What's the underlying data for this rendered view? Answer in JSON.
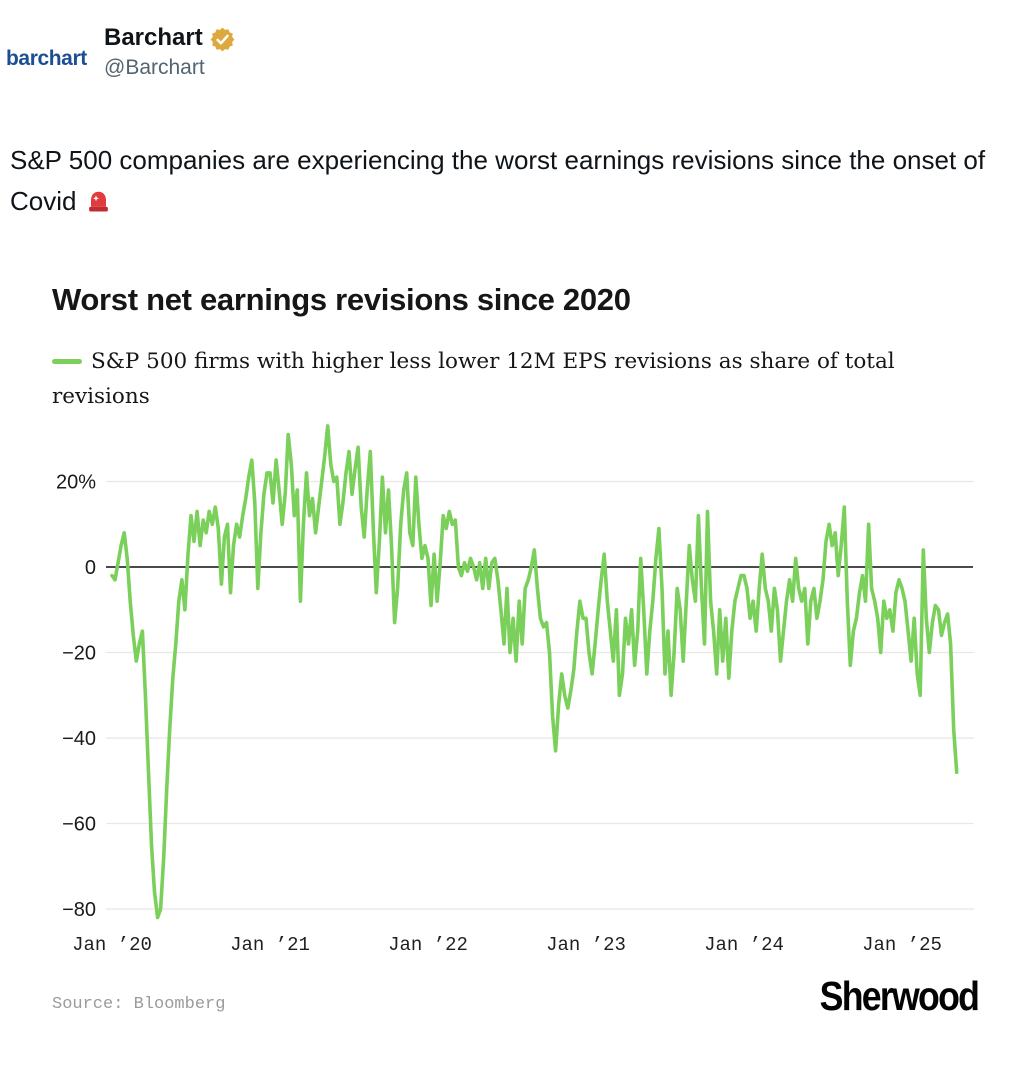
{
  "header": {
    "avatar_logo_text": "barchart",
    "display_name": "Barchart",
    "handle": "@Barchart",
    "verified_badge": "gold-verified",
    "logo_blue": "#1d4e94",
    "badge_gold": "#dda93f"
  },
  "tweet": {
    "text": "S&P 500 companies are experiencing the worst earnings revisions since the onset of Covid",
    "emoji": "🚨"
  },
  "chart": {
    "title": "Worst net earnings revisions since 2020",
    "legend_label": "S&P 500 firms with higher less lower 12M EPS revisions as share of total revisions",
    "source": "Source: Bloomberg",
    "branding": "Sherwood",
    "line_color": "#7ad05a",
    "grid_color": "#e8e8e8",
    "zero_line_color": "#4b4b4b"
  },
  "chart_data": {
    "type": "line",
    "title": "Worst net earnings revisions since 2020",
    "ylabel": "",
    "unit": "%",
    "ylim": [
      -85,
      35
    ],
    "yticks": [
      20,
      0,
      -20,
      -40,
      -60,
      -80
    ],
    "ytick_labels": [
      "20%",
      "0",
      "−20",
      "−40",
      "−60",
      "−80"
    ],
    "xtick_labels": [
      "Jan ’20",
      "Jan ’21",
      "Jan ’22",
      "Jan ’23",
      "Jan ’24",
      "Jan ’25"
    ],
    "grid": "horizontal",
    "legend_position": "top-left",
    "zero_line": true,
    "x_start_year": 2020,
    "points_per_year": 52,
    "series": [
      {
        "name": "S&P 500 firms with higher less lower 12M EPS revisions as share of total revisions",
        "frequency": "weekly",
        "values": [
          -2,
          -3,
          1,
          5,
          8,
          2,
          -8,
          -16,
          -22,
          -18,
          -15,
          -30,
          -48,
          -65,
          -76,
          -82,
          -80,
          -68,
          -52,
          -38,
          -26,
          -18,
          -8,
          -3,
          -10,
          3,
          12,
          6,
          13,
          5,
          11,
          8,
          13,
          10,
          14,
          9,
          -4,
          7,
          10,
          -6,
          5,
          10,
          7,
          12,
          16,
          21,
          25,
          15,
          -5,
          8,
          17,
          22,
          22,
          15,
          25,
          18,
          10,
          17,
          31,
          24,
          12,
          18,
          -8,
          10,
          22,
          12,
          16,
          8,
          14,
          20,
          26,
          33,
          24,
          20,
          21,
          10,
          15,
          22,
          27,
          17,
          23,
          28,
          14,
          7,
          18,
          27,
          9,
          -6,
          6,
          21,
          8,
          18,
          5,
          -13,
          -5,
          10,
          18,
          22,
          8,
          5,
          21,
          10,
          2,
          5,
          2,
          -9,
          3,
          -8,
          1,
          12,
          9,
          13,
          10,
          11,
          0,
          -2,
          1,
          -1,
          2,
          0,
          -3,
          1,
          -5,
          2,
          -5,
          1,
          2,
          -3,
          -10,
          -18,
          -5,
          -20,
          -12,
          -22,
          -8,
          -18,
          -5,
          -3,
          0,
          4,
          -5,
          -12,
          -14,
          -13,
          -20,
          -35,
          -43,
          -32,
          -25,
          -30,
          -33,
          -29,
          -24,
          -15,
          -8,
          -12,
          -12,
          -20,
          -25,
          -18,
          -10,
          -3,
          3,
          -8,
          -15,
          -22,
          -10,
          -30,
          -25,
          -12,
          -18,
          -10,
          -23,
          -15,
          2,
          -10,
          -25,
          -15,
          -8,
          2,
          9,
          -5,
          -25,
          -15,
          -30,
          -20,
          -5,
          -10,
          -22,
          -8,
          5,
          -3,
          -8,
          12,
          -5,
          -18,
          13,
          -8,
          -15,
          -25,
          -10,
          -22,
          -12,
          -26,
          -15,
          -8,
          -5,
          -2,
          -2,
          -5,
          -12,
          -8,
          -15,
          -5,
          3,
          -5,
          -8,
          -15,
          -5,
          -10,
          -22,
          -15,
          -8,
          -3,
          -8,
          2,
          -5,
          -8,
          -5,
          -18,
          -8,
          -5,
          -12,
          -8,
          -3,
          6,
          10,
          5,
          8,
          -2,
          5,
          14,
          -8,
          -23,
          -15,
          -12,
          -6,
          -2,
          -8,
          10,
          -5,
          -8,
          -12,
          -20,
          -8,
          -12,
          -10,
          -15,
          -6,
          -3,
          -5,
          -8,
          -15,
          -22,
          -12,
          -25,
          -30,
          4,
          -12,
          -20,
          -13,
          -9,
          -10,
          -16,
          -13,
          -11,
          -18,
          -38,
          -48
        ]
      }
    ]
  }
}
